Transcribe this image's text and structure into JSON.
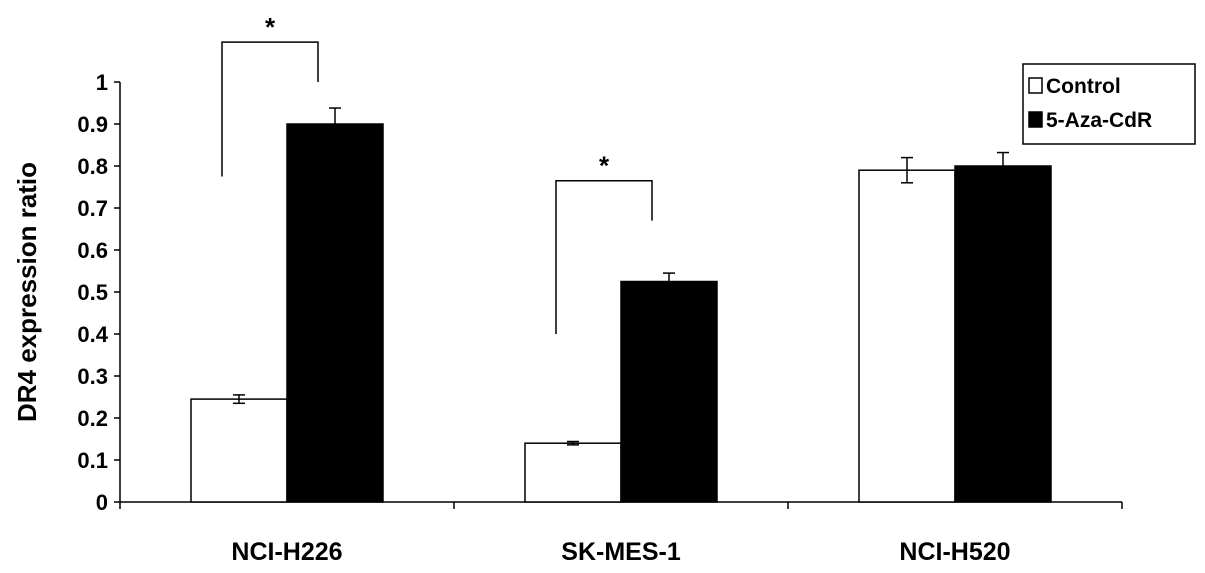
{
  "chart_data": {
    "type": "bar",
    "ylabel": "DR4 expression ratio",
    "xlabel": "",
    "ylim": [
      0,
      1
    ],
    "yticks": [
      "0",
      "0.1",
      "0.2",
      "0.3",
      "0.4",
      "0.5",
      "0.6",
      "0.7",
      "0.8",
      "0.9",
      "1"
    ],
    "categories": [
      "NCI-H226",
      "SK-MES-1",
      "NCI-H520"
    ],
    "series": [
      {
        "name": "Control",
        "values": [
          0.245,
          0.14,
          0.79
        ],
        "errors": [
          0.01,
          0.004,
          0.03
        ],
        "color": "#ffffff"
      },
      {
        "name": "5-Aza-CdR",
        "values": [
          0.9,
          0.525,
          0.8
        ],
        "errors": [
          0.038,
          0.02,
          0.032
        ],
        "color": "#000000"
      }
    ],
    "significance": [
      {
        "category": "NCI-H226",
        "label": "*",
        "bracket_left": 0.775,
        "bracket_right": 1.0
      },
      {
        "category": "SK-MES-1",
        "label": "*",
        "bracket_left": 0.4,
        "bracket_right": 0.67
      }
    ],
    "legend_position": "top-right",
    "grid": false
  }
}
